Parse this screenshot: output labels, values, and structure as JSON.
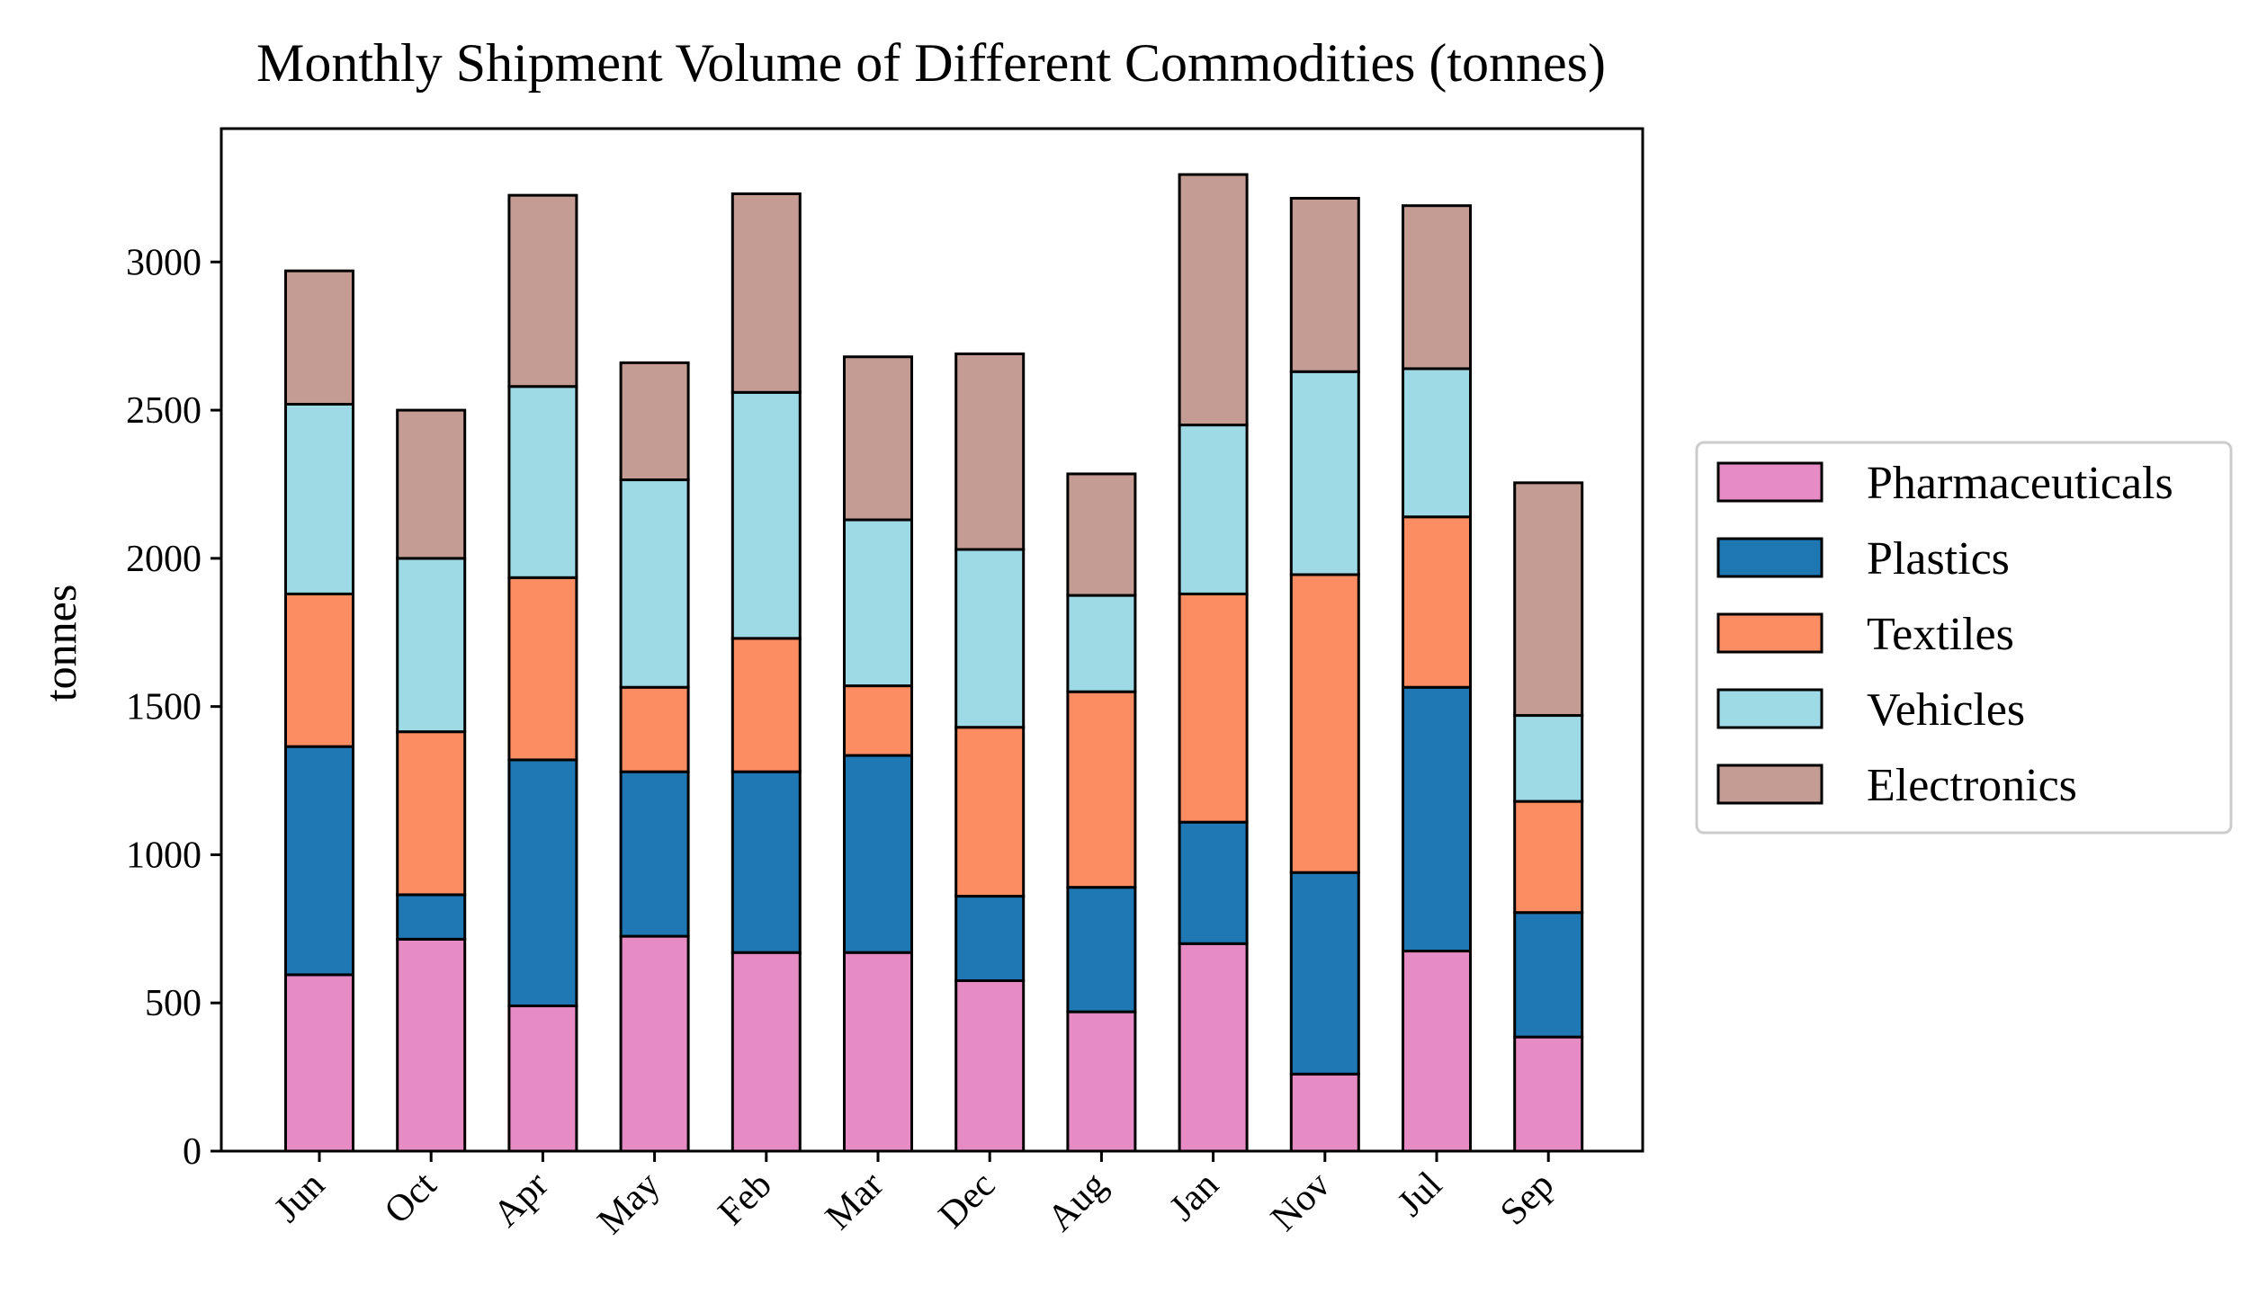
{
  "chart_data": {
    "type": "bar",
    "stacked": true,
    "title": "Monthly Shipment Volume of Different Commodities (tonnes)",
    "xlabel": "",
    "ylabel": "tonnes",
    "ylim": [
      0,
      3450
    ],
    "yticks": [
      0,
      500,
      1000,
      1500,
      2000,
      2500,
      3000
    ],
    "grid": false,
    "legend_position": "right",
    "categories": [
      "Jun",
      "Oct",
      "Apr",
      "May",
      "Feb",
      "Mar",
      "Dec",
      "Aug",
      "Jan",
      "Nov",
      "Jul",
      "Sep"
    ],
    "series": [
      {
        "name": "Pharmaceuticals",
        "color": "#E68BC4",
        "values": [
          595,
          715,
          490,
          725,
          670,
          670,
          575,
          470,
          700,
          260,
          675,
          385
        ]
      },
      {
        "name": "Plastics",
        "color": "#1F77B4",
        "values": [
          770,
          150,
          830,
          555,
          610,
          665,
          285,
          420,
          410,
          680,
          890,
          420
        ]
      },
      {
        "name": "Textiles",
        "color": "#FC8D62",
        "values": [
          515,
          550,
          615,
          285,
          450,
          235,
          570,
          660,
          770,
          1005,
          575,
          375
        ]
      },
      {
        "name": "Vehicles",
        "color": "#9EDAE5",
        "values": [
          640,
          585,
          645,
          700,
          830,
          560,
          600,
          325,
          570,
          685,
          500,
          290
        ]
      },
      {
        "name": "Electronics",
        "color": "#C49C94",
        "values": [
          450,
          500,
          645,
          395,
          670,
          550,
          660,
          410,
          845,
          585,
          550,
          785
        ]
      }
    ]
  }
}
